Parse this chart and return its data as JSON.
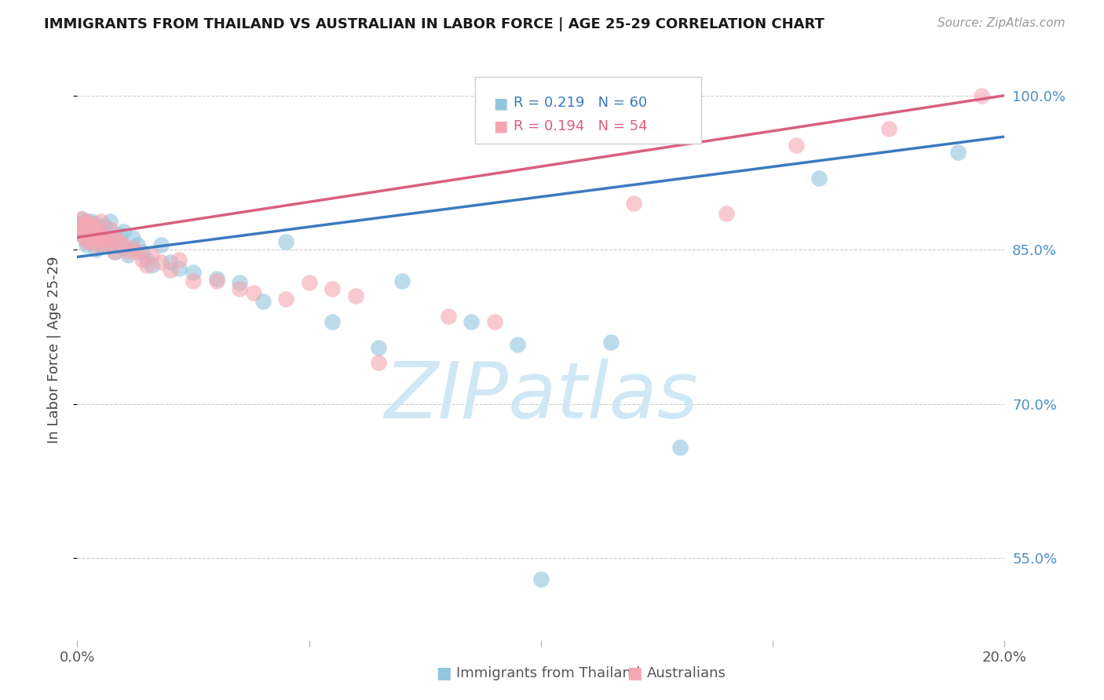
{
  "title": "IMMIGRANTS FROM THAILAND VS AUSTRALIAN IN LABOR FORCE | AGE 25-29 CORRELATION CHART",
  "source": "Source: ZipAtlas.com",
  "ylabel": "In Labor Force | Age 25-29",
  "legend_text1": "R = 0.219   N = 60",
  "legend_text2": "R = 0.194   N = 54",
  "blue_color": "#92c5de",
  "pink_color": "#f4a7b2",
  "blue_line_color": "#3a7bbf",
  "pink_line_color": "#d95f7f",
  "right_axis_color": "#4a90c4",
  "watermark_color": "#d0e8f5",
  "ytick_vals": [
    0.55,
    0.7,
    0.85,
    1.0
  ],
  "ytick_labels": [
    "55.0%",
    "70.0%",
    "85.0%",
    "100.0%"
  ],
  "ylim_min": 0.47,
  "ylim_max": 1.035,
  "xlim_min": 0.0,
  "xlim_max": 0.2,
  "thailand_x": [
    0.001,
    0.001,
    0.001,
    0.001,
    0.001,
    0.001,
    0.002,
    0.002,
    0.002,
    0.002,
    0.002,
    0.003,
    0.003,
    0.003,
    0.003,
    0.003,
    0.004,
    0.004,
    0.004,
    0.004,
    0.004,
    0.005,
    0.005,
    0.005,
    0.005,
    0.006,
    0.006,
    0.007,
    0.007,
    0.007,
    0.008,
    0.008,
    0.009,
    0.009,
    0.01,
    0.01,
    0.011,
    0.012,
    0.013,
    0.014,
    0.015,
    0.016,
    0.018,
    0.02,
    0.022,
    0.025,
    0.03,
    0.035,
    0.04,
    0.045,
    0.055,
    0.065,
    0.07,
    0.085,
    0.095,
    0.1,
    0.115,
    0.13,
    0.16,
    0.19
  ],
  "thailand_y": [
    0.87,
    0.872,
    0.868,
    0.865,
    0.88,
    0.875,
    0.86,
    0.862,
    0.878,
    0.855,
    0.87,
    0.858,
    0.865,
    0.872,
    0.878,
    0.862,
    0.86,
    0.868,
    0.875,
    0.85,
    0.872,
    0.858,
    0.865,
    0.855,
    0.87,
    0.86,
    0.872,
    0.855,
    0.862,
    0.878,
    0.848,
    0.862,
    0.855,
    0.865,
    0.852,
    0.868,
    0.845,
    0.862,
    0.855,
    0.848,
    0.84,
    0.835,
    0.855,
    0.838,
    0.832,
    0.828,
    0.822,
    0.818,
    0.8,
    0.858,
    0.78,
    0.755,
    0.82,
    0.78,
    0.758,
    0.53,
    0.76,
    0.658,
    0.92,
    0.945
  ],
  "australian_x": [
    0.001,
    0.001,
    0.001,
    0.001,
    0.001,
    0.002,
    0.002,
    0.002,
    0.002,
    0.002,
    0.003,
    0.003,
    0.003,
    0.003,
    0.004,
    0.004,
    0.004,
    0.004,
    0.005,
    0.005,
    0.005,
    0.006,
    0.006,
    0.007,
    0.007,
    0.008,
    0.008,
    0.009,
    0.01,
    0.011,
    0.012,
    0.013,
    0.014,
    0.015,
    0.016,
    0.018,
    0.02,
    0.022,
    0.025,
    0.03,
    0.035,
    0.038,
    0.045,
    0.05,
    0.055,
    0.06,
    0.065,
    0.08,
    0.09,
    0.12,
    0.14,
    0.155,
    0.175,
    0.195
  ],
  "australian_y": [
    0.88,
    0.875,
    0.872,
    0.868,
    0.865,
    0.878,
    0.87,
    0.862,
    0.875,
    0.858,
    0.872,
    0.865,
    0.858,
    0.875,
    0.868,
    0.862,
    0.855,
    0.872,
    0.865,
    0.858,
    0.878,
    0.862,
    0.855,
    0.87,
    0.858,
    0.862,
    0.848,
    0.858,
    0.855,
    0.848,
    0.852,
    0.848,
    0.84,
    0.835,
    0.845,
    0.838,
    0.83,
    0.84,
    0.82,
    0.82,
    0.812,
    0.808,
    0.802,
    0.818,
    0.812,
    0.805,
    0.74,
    0.785,
    0.78,
    0.895,
    0.885,
    0.952,
    0.968,
    1.0
  ]
}
